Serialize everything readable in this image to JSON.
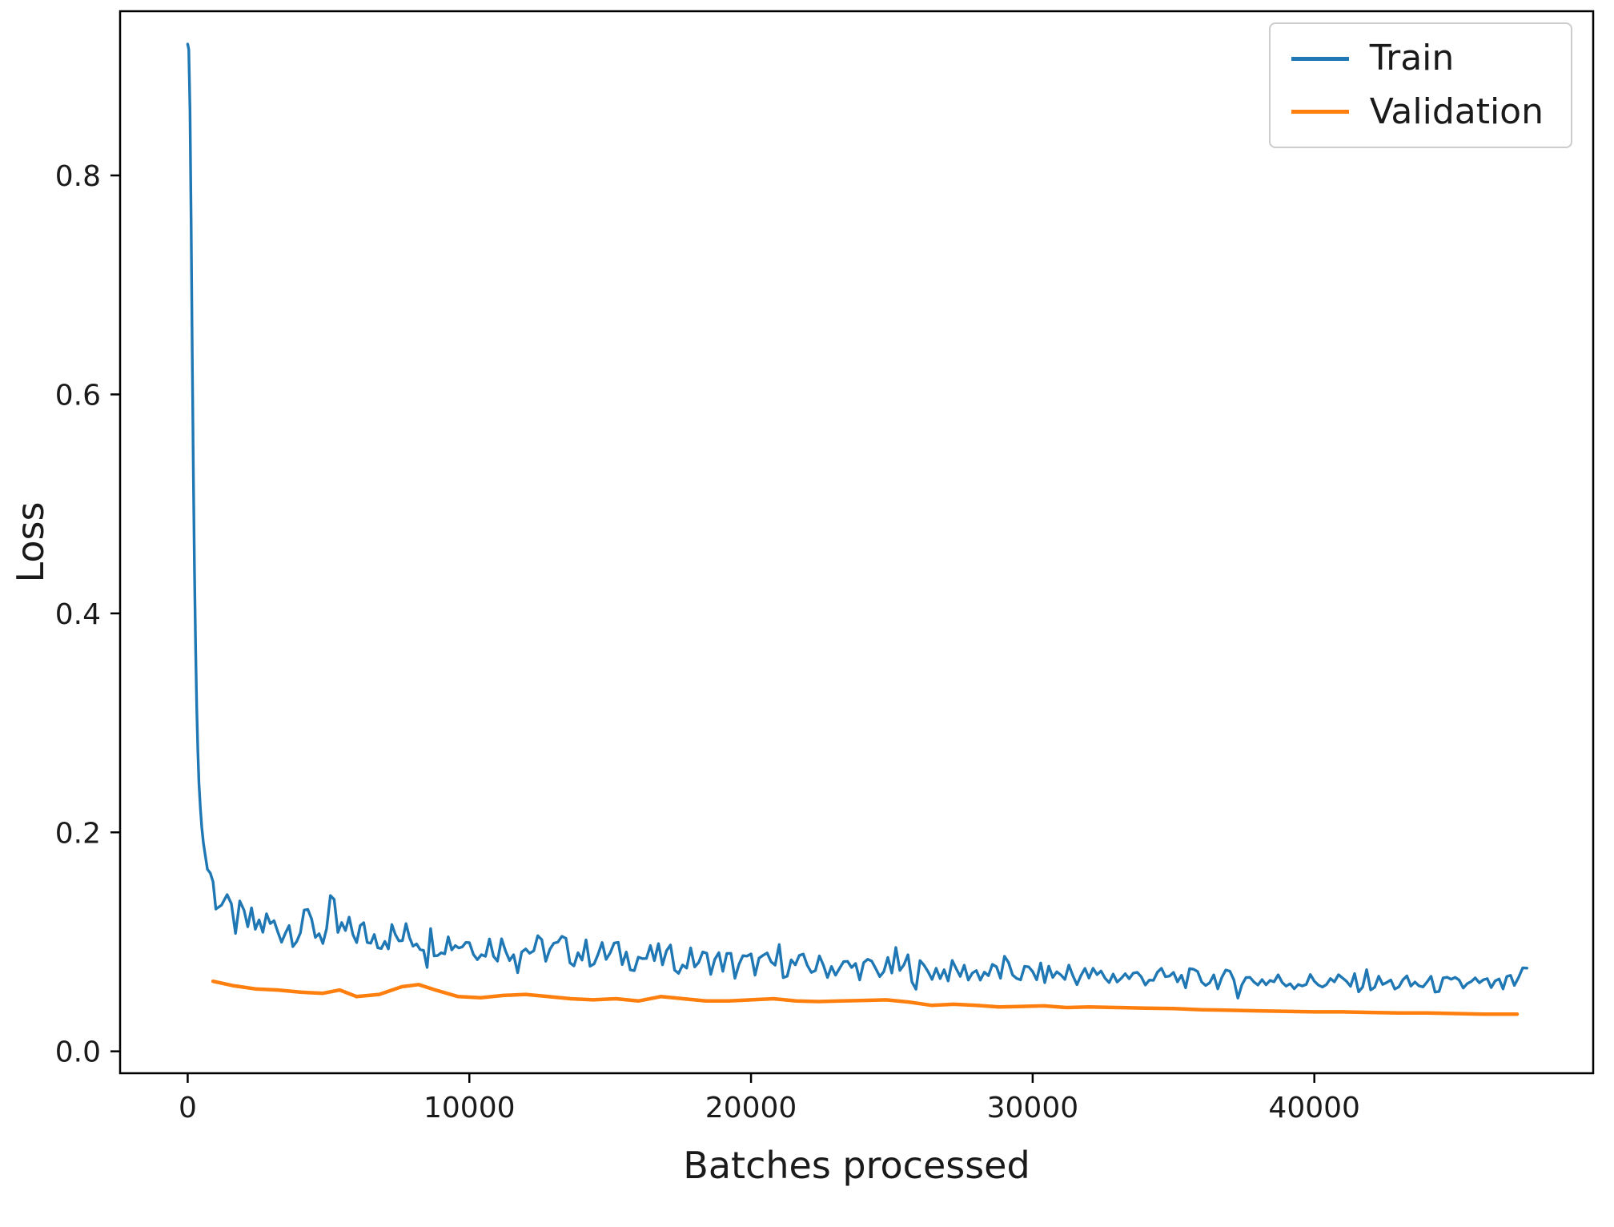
{
  "chart_data": {
    "type": "line",
    "title": "",
    "xlabel": "Batches processed",
    "ylabel": "Loss",
    "xlim": [
      -2400,
      49900
    ],
    "ylim": [
      -0.02,
      0.95
    ],
    "grid": false,
    "legend": {
      "position": "upper right"
    },
    "x_ticks": [
      {
        "value": 0,
        "label": "0"
      },
      {
        "value": 10000,
        "label": "10000"
      },
      {
        "value": 20000,
        "label": "20000"
      },
      {
        "value": 30000,
        "label": "30000"
      },
      {
        "value": 40000,
        "label": "40000"
      }
    ],
    "y_ticks": [
      {
        "value": 0.0,
        "label": "0.0"
      },
      {
        "value": 0.2,
        "label": "0.2"
      },
      {
        "value": 0.4,
        "label": "0.4"
      },
      {
        "value": 0.6,
        "label": "0.6"
      },
      {
        "value": 0.8,
        "label": "0.8"
      }
    ],
    "series": [
      {
        "name": "Train",
        "color": "#1f77b4",
        "line_width": 3.4,
        "noise": {
          "amplitude": 0.02,
          "decay": 25000,
          "start_x": 650
        },
        "points": [
          [
            0,
            0.92
          ],
          [
            40,
            0.915
          ],
          [
            80,
            0.86
          ],
          [
            120,
            0.76
          ],
          [
            160,
            0.64
          ],
          [
            200,
            0.53
          ],
          [
            240,
            0.44
          ],
          [
            280,
            0.37
          ],
          [
            320,
            0.315
          ],
          [
            360,
            0.275
          ],
          [
            400,
            0.245
          ],
          [
            450,
            0.222
          ],
          [
            500,
            0.205
          ],
          [
            560,
            0.19
          ],
          [
            630,
            0.178
          ],
          [
            700,
            0.168
          ],
          [
            800,
            0.158
          ],
          [
            900,
            0.15
          ],
          [
            1000,
            0.143
          ],
          [
            1200,
            0.132
          ],
          [
            1400,
            0.125
          ],
          [
            1700,
            0.12
          ],
          [
            2000,
            0.117
          ],
          [
            2400,
            0.114
          ],
          [
            2800,
            0.116
          ],
          [
            3200,
            0.112
          ],
          [
            3600,
            0.115
          ],
          [
            4000,
            0.111
          ],
          [
            4400,
            0.113
          ],
          [
            4800,
            0.109
          ],
          [
            5200,
            0.111
          ],
          [
            5600,
            0.107
          ],
          [
            6000,
            0.109
          ],
          [
            6500,
            0.106
          ],
          [
            7000,
            0.107
          ],
          [
            7500,
            0.104
          ],
          [
            8000,
            0.105
          ],
          [
            8500,
            0.102
          ],
          [
            9000,
            0.103
          ],
          [
            9500,
            0.1
          ],
          [
            10000,
            0.099
          ],
          [
            11000,
            0.096
          ],
          [
            12000,
            0.094
          ],
          [
            13000,
            0.092
          ],
          [
            14000,
            0.09
          ],
          [
            15000,
            0.088
          ],
          [
            16000,
            0.086
          ],
          [
            17000,
            0.085
          ],
          [
            18000,
            0.083
          ],
          [
            19000,
            0.082
          ],
          [
            20000,
            0.08
          ],
          [
            21000,
            0.079
          ],
          [
            22000,
            0.078
          ],
          [
            23000,
            0.077
          ],
          [
            24000,
            0.076
          ],
          [
            25000,
            0.075
          ],
          [
            26000,
            0.074
          ],
          [
            27000,
            0.073
          ],
          [
            28000,
            0.072
          ],
          [
            29000,
            0.0715
          ],
          [
            30000,
            0.071
          ],
          [
            31000,
            0.07
          ],
          [
            32000,
            0.069
          ],
          [
            33000,
            0.0685
          ],
          [
            34000,
            0.068
          ],
          [
            35000,
            0.067
          ],
          [
            36000,
            0.066
          ],
          [
            37000,
            0.0655
          ],
          [
            38000,
            0.065
          ],
          [
            39000,
            0.064
          ],
          [
            40000,
            0.0635
          ],
          [
            41000,
            0.063
          ],
          [
            42000,
            0.062
          ],
          [
            43000,
            0.0615
          ],
          [
            44000,
            0.061
          ],
          [
            45000,
            0.0605
          ],
          [
            46000,
            0.06
          ],
          [
            46700,
            0.06
          ],
          [
            47100,
            0.063
          ],
          [
            47400,
            0.07
          ],
          [
            47550,
            0.076
          ]
        ]
      },
      {
        "name": "Validation",
        "color": "#ff7f0e",
        "line_width": 4.5,
        "points": [
          [
            900,
            0.064
          ],
          [
            1600,
            0.06
          ],
          [
            2400,
            0.057
          ],
          [
            3200,
            0.056
          ],
          [
            4000,
            0.054
          ],
          [
            4800,
            0.053
          ],
          [
            5400,
            0.056
          ],
          [
            6000,
            0.05
          ],
          [
            6800,
            0.052
          ],
          [
            7600,
            0.059
          ],
          [
            8200,
            0.061
          ],
          [
            8800,
            0.056
          ],
          [
            9600,
            0.05
          ],
          [
            10400,
            0.049
          ],
          [
            11200,
            0.051
          ],
          [
            12000,
            0.052
          ],
          [
            12800,
            0.05
          ],
          [
            13600,
            0.048
          ],
          [
            14400,
            0.047
          ],
          [
            15200,
            0.048
          ],
          [
            16000,
            0.046
          ],
          [
            16800,
            0.05
          ],
          [
            17600,
            0.048
          ],
          [
            18400,
            0.046
          ],
          [
            19200,
            0.046
          ],
          [
            20000,
            0.047
          ],
          [
            20800,
            0.048
          ],
          [
            21600,
            0.046
          ],
          [
            22400,
            0.0455
          ],
          [
            23200,
            0.046
          ],
          [
            24000,
            0.0465
          ],
          [
            24800,
            0.047
          ],
          [
            25600,
            0.045
          ],
          [
            26400,
            0.042
          ],
          [
            27200,
            0.043
          ],
          [
            28000,
            0.042
          ],
          [
            28800,
            0.0405
          ],
          [
            29600,
            0.041
          ],
          [
            30400,
            0.0415
          ],
          [
            31200,
            0.04
          ],
          [
            32000,
            0.0405
          ],
          [
            33000,
            0.04
          ],
          [
            34000,
            0.0395
          ],
          [
            35000,
            0.039
          ],
          [
            36000,
            0.038
          ],
          [
            37000,
            0.0375
          ],
          [
            38000,
            0.037
          ],
          [
            39000,
            0.0365
          ],
          [
            40000,
            0.036
          ],
          [
            41000,
            0.036
          ],
          [
            42000,
            0.0355
          ],
          [
            43000,
            0.035
          ],
          [
            44000,
            0.035
          ],
          [
            45000,
            0.0345
          ],
          [
            46000,
            0.034
          ],
          [
            47200,
            0.034
          ]
        ]
      }
    ]
  }
}
